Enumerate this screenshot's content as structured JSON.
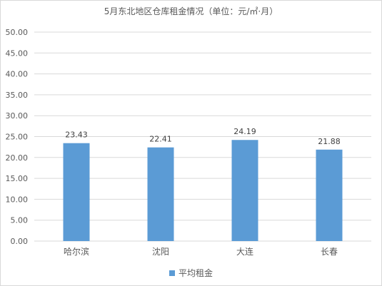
{
  "chart_data": {
    "type": "bar",
    "title": "5月东北地区仓库租金情况（单位：元/㎡·月）",
    "categories": [
      "哈尔滨",
      "沈阳",
      "大连",
      "长春"
    ],
    "series": [
      {
        "name": "平均租金",
        "values": [
          23.43,
          22.41,
          24.19,
          21.88
        ],
        "color": "#5b9bd5"
      }
    ],
    "data_labels": [
      "23.43",
      "22.41",
      "24.19",
      "21.88"
    ],
    "y_ticks": [
      "0.00",
      "5.00",
      "10.00",
      "15.00",
      "20.00",
      "25.00",
      "30.00",
      "35.00",
      "40.00",
      "45.00",
      "50.00"
    ],
    "ylim": [
      0,
      50
    ],
    "xlabel": "",
    "ylabel": "",
    "grid": true,
    "legend_position": "bottom"
  }
}
